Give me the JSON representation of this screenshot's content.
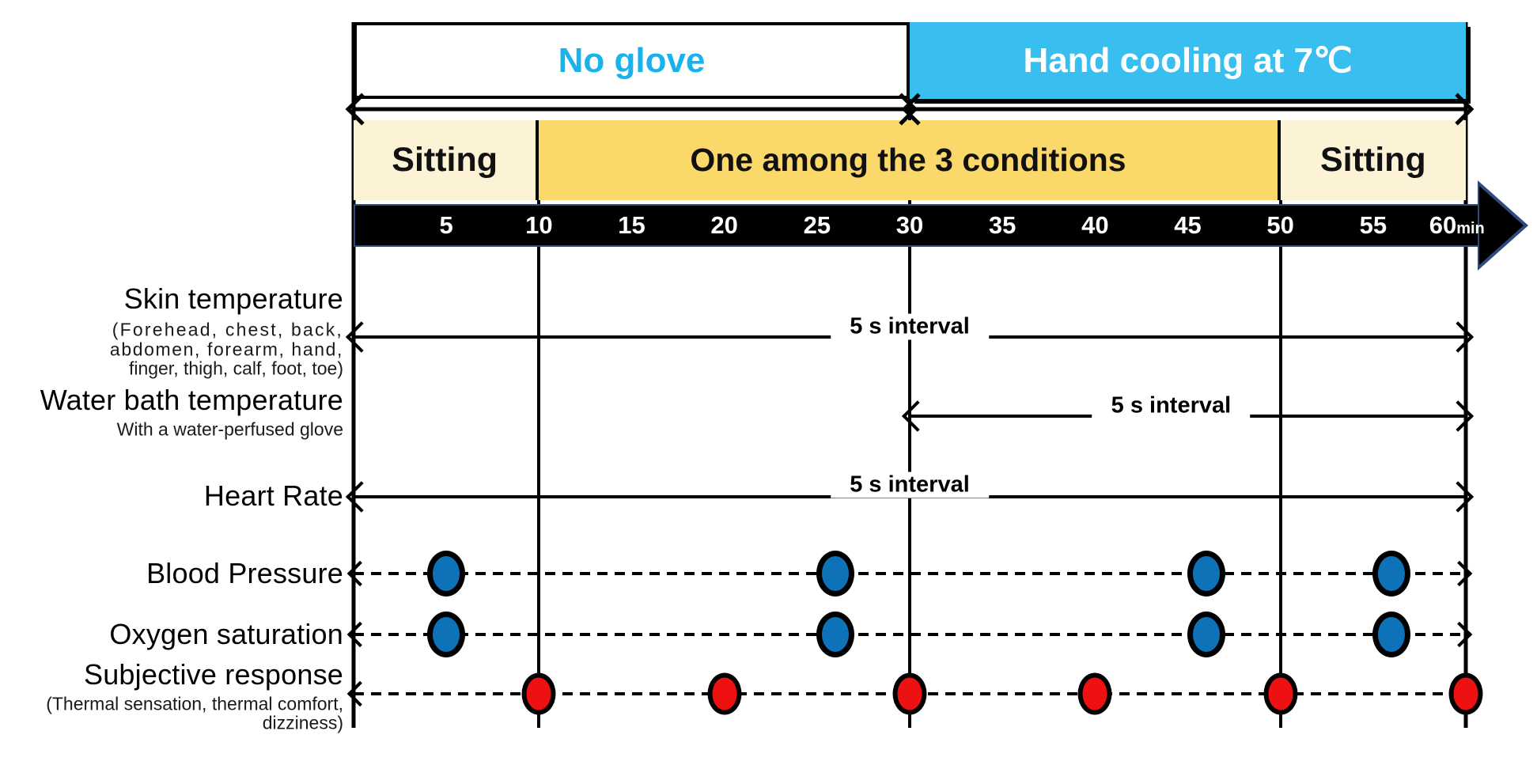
{
  "title": "Experimental protocol timeline",
  "colors": {
    "cyan_text": "#18B2EC",
    "cooling_fill": "#38BFF0",
    "sitting_fill": "#FCF3D6",
    "condition_fill": "#FBD86A",
    "bar_fill": "#000000",
    "bar_border": "#2E4B7E",
    "blue_dot": "#0E72B8",
    "red_dot": "#EE1111"
  },
  "phase_bars": [
    {
      "label": "No glove",
      "start_min": 0,
      "end_min": 30
    },
    {
      "label": "Hand cooling at 7℃",
      "start_min": 30,
      "end_min": 60
    }
  ],
  "condition_bars": [
    {
      "label": "Sitting",
      "start_min": 0,
      "end_min": 10
    },
    {
      "label": "One among the 3 conditions",
      "start_min": 10,
      "end_min": 50
    },
    {
      "label": "Sitting",
      "start_min": 50,
      "end_min": 60
    }
  ],
  "timeline": {
    "ticks": [
      5,
      10,
      15,
      20,
      25,
      30,
      35,
      40,
      45,
      50,
      55,
      60
    ],
    "unit": "min",
    "gridlines_min": [
      0,
      10,
      30,
      50,
      60
    ]
  },
  "rows": [
    {
      "id": "skin",
      "label": "Skin temperature",
      "sublabel_lines": [
        "(Forehead, chest, back,",
        "abdomen, forearm, hand,",
        "finger, thigh, calf, foot, toe)"
      ],
      "measure": {
        "type": "solid-arrow",
        "start_min": 0,
        "end_min": 60,
        "label": "5 s interval",
        "label_at_min": 30
      }
    },
    {
      "id": "water",
      "label": "Water bath temperature",
      "sublabel_lines": [
        "With a water-perfused glove"
      ],
      "measure": {
        "type": "solid-arrow",
        "start_min": 30,
        "end_min": 60,
        "label": "5 s interval",
        "label_at_min": 44
      }
    },
    {
      "id": "heart",
      "label": "Heart Rate",
      "measure": {
        "type": "solid-arrow",
        "start_min": 0,
        "end_min": 60,
        "label": "5 s interval",
        "label_at_min": 30
      }
    },
    {
      "id": "bp",
      "label": "Blood Pressure",
      "measure": {
        "type": "dashed-arrow",
        "start_min": 0,
        "end_min": 60,
        "dots": {
          "color": "blue",
          "times_min": [
            5,
            26,
            46,
            56
          ]
        }
      }
    },
    {
      "id": "o2",
      "label": "Oxygen saturation",
      "measure": {
        "type": "dashed-arrow",
        "start_min": 0,
        "end_min": 60,
        "dots": {
          "color": "blue",
          "times_min": [
            5,
            26,
            46,
            56
          ]
        }
      }
    },
    {
      "id": "subj",
      "label": "Subjective response",
      "sublabel_lines": [
        "(Thermal sensation, thermal comfort,",
        "dizziness)"
      ],
      "measure": {
        "type": "dashed-arrow",
        "start_min": 0,
        "end_min": 60,
        "dots": {
          "color": "red",
          "times_min": [
            10,
            20,
            30,
            40,
            50,
            60
          ]
        }
      }
    }
  ]
}
